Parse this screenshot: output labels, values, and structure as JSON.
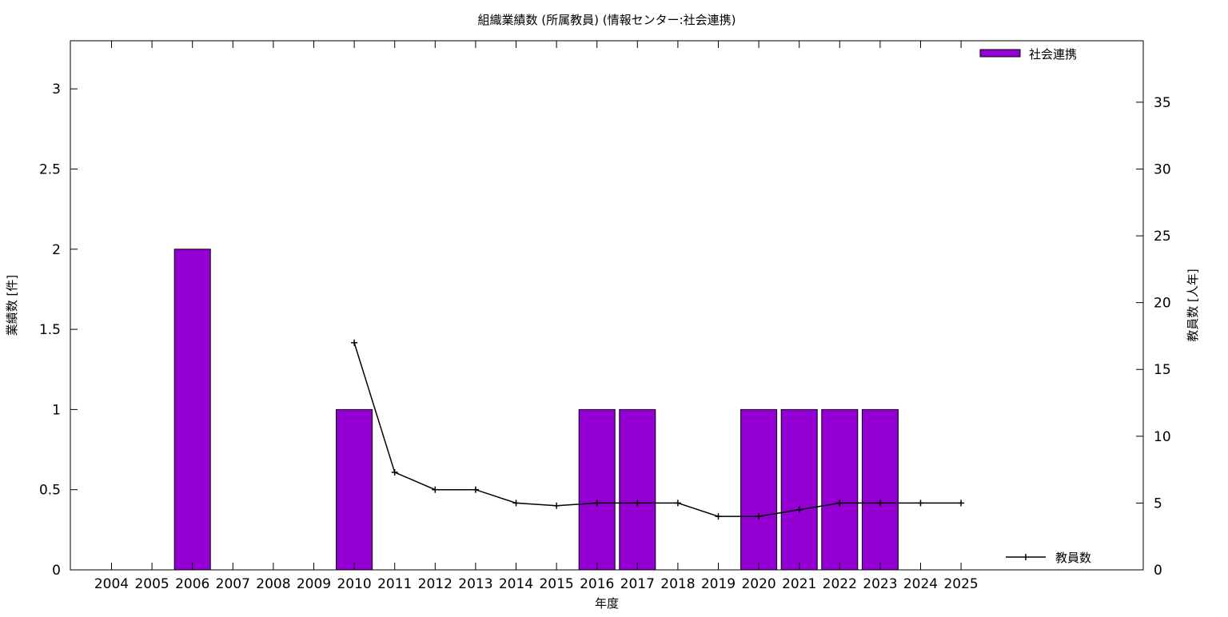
{
  "chart_data": {
    "type": "bar",
    "title": "組織業績数 (所属教員) (情報センター:社会連携)",
    "xlabel": "年度",
    "ylabel": "業績数 [件]",
    "y2label": "教員数 [人年]",
    "categories": [
      "2004",
      "2005",
      "2006",
      "2007",
      "2008",
      "2009",
      "2010",
      "2011",
      "2012",
      "2013",
      "2014",
      "2015",
      "2016",
      "2017",
      "2018",
      "2019",
      "2020",
      "2021",
      "2022",
      "2023",
      "2024",
      "2025"
    ],
    "ylim": [
      0,
      3.3
    ],
    "yticks": [
      "0",
      "0.5",
      "1",
      "1.5",
      "2",
      "2.5",
      "3"
    ],
    "y2lim": [
      0,
      39.6
    ],
    "y2ticks": [
      "0",
      "5",
      "10",
      "15",
      "20",
      "25",
      "30",
      "35"
    ],
    "grid": false,
    "series": [
      {
        "name": "社会連携",
        "kind": "bar",
        "axis": "left",
        "color": "#9400d3",
        "values": [
          0,
          0,
          2,
          0,
          0,
          0,
          1,
          0,
          0,
          0,
          0,
          0,
          1,
          1,
          0,
          0,
          1,
          1,
          1,
          1,
          0,
          0
        ]
      },
      {
        "name": "教員数",
        "kind": "line",
        "axis": "right",
        "color": "#000000",
        "x": [
          "2010",
          "2011",
          "2012",
          "2013",
          "2014",
          "2015",
          "2016",
          "2017",
          "2018",
          "2019",
          "2020",
          "2021",
          "2022",
          "2023",
          "2024",
          "2025"
        ],
        "values": [
          17,
          7.3,
          6,
          6,
          5,
          4.8,
          5,
          5,
          5,
          4,
          4,
          4.5,
          5,
          5,
          5,
          5
        ]
      }
    ],
    "legend": [
      {
        "label": "社会連携",
        "placement": "top-right"
      },
      {
        "label": "教員数",
        "placement": "bottom-right"
      }
    ]
  }
}
